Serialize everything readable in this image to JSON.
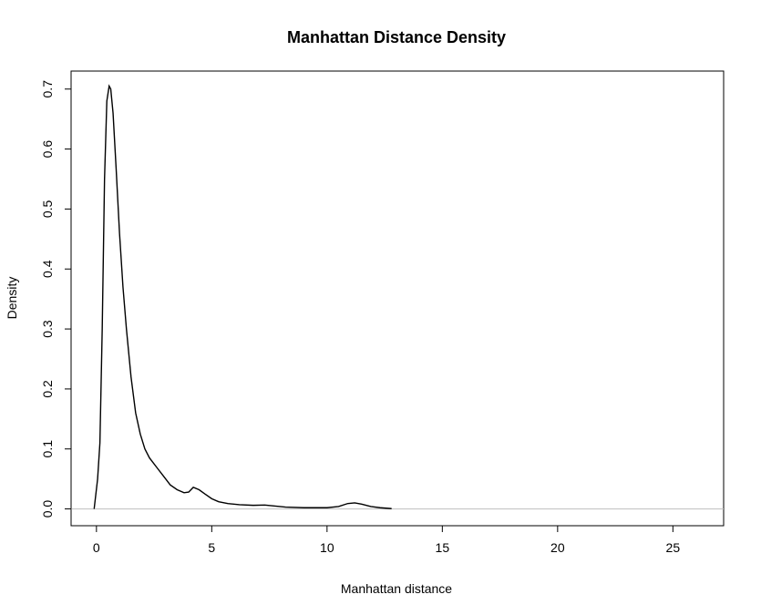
{
  "chart_data": {
    "type": "line",
    "title": "Manhattan Distance Density",
    "xlabel": "Manhattan distance",
    "ylabel": "Density",
    "xlim": [
      -1.1,
      27.2
    ],
    "ylim": [
      -0.028,
      0.73
    ],
    "x_ticks": [
      0,
      5,
      10,
      15,
      20,
      25
    ],
    "y_ticks": [
      0.0,
      0.1,
      0.2,
      0.3,
      0.4,
      0.5,
      0.6,
      0.7
    ],
    "x_tick_labels": [
      "0",
      "5",
      "10",
      "15",
      "20",
      "25"
    ],
    "y_tick_labels": [
      "0.0",
      "0.1",
      "0.2",
      "0.3",
      "0.4",
      "0.5",
      "0.6",
      "0.7"
    ],
    "baseline": {
      "y": 0,
      "color": "#bfbfbf"
    },
    "series": [
      {
        "color": "#000000",
        "x": [
          -0.1,
          0.05,
          0.15,
          0.25,
          0.35,
          0.45,
          0.55,
          0.62,
          0.72,
          0.85,
          1.0,
          1.15,
          1.3,
          1.5,
          1.7,
          1.9,
          2.1,
          2.3,
          2.6,
          2.9,
          3.2,
          3.5,
          3.8,
          4.0,
          4.2,
          4.45,
          4.7,
          5.0,
          5.3,
          5.7,
          6.2,
          6.8,
          7.3,
          7.7,
          8.2,
          9.0,
          10.0,
          10.5,
          10.9,
          11.2,
          11.5,
          11.9,
          12.3,
          12.8
        ],
        "y": [
          0.0,
          0.05,
          0.11,
          0.3,
          0.55,
          0.68,
          0.705,
          0.7,
          0.66,
          0.57,
          0.46,
          0.37,
          0.3,
          0.22,
          0.16,
          0.125,
          0.1,
          0.085,
          0.07,
          0.055,
          0.04,
          0.032,
          0.027,
          0.028,
          0.036,
          0.032,
          0.025,
          0.017,
          0.012,
          0.009,
          0.007,
          0.006,
          0.0065,
          0.005,
          0.003,
          0.002,
          0.002,
          0.004,
          0.009,
          0.01,
          0.008,
          0.004,
          0.002,
          0.0005
        ]
      }
    ]
  }
}
